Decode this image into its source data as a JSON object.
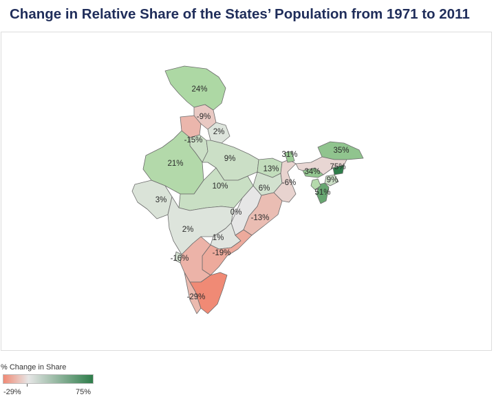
{
  "title": "Change in Relative Share of the States’ Population from 1971 to 2011",
  "legend": {
    "title": "% Change in Share",
    "min_label": "-29%",
    "max_label": "75%",
    "min_value": -29,
    "mid_value": 0,
    "max_value": 75,
    "color_min": "#f08a75",
    "color_mid": "#e6e6e6",
    "color_max": "#2e7d4a"
  },
  "chart_data": {
    "type": "choropleth",
    "regions": [
      {
        "name": "Jammu and Kashmir",
        "value": 24,
        "label": "24%"
      },
      {
        "name": "Himachal Pradesh",
        "value": -9,
        "label": "-9%"
      },
      {
        "name": "Punjab",
        "value": -15,
        "label": "-15%"
      },
      {
        "name": "Uttarakhand",
        "value": 2,
        "label": "2%"
      },
      {
        "name": "Haryana",
        "value": 9,
        "label": ""
      },
      {
        "name": "Rajasthan",
        "value": 21,
        "label": "21%"
      },
      {
        "name": "Uttar Pradesh",
        "value": 9,
        "label": "9%"
      },
      {
        "name": "Bihar",
        "value": 13,
        "label": "13%"
      },
      {
        "name": "Jharkhand",
        "value": 6,
        "label": "6%"
      },
      {
        "name": "West Bengal",
        "value": -6,
        "label": "-6%"
      },
      {
        "name": "Sikkim",
        "value": 31,
        "label": "31%"
      },
      {
        "name": "Arunachal Pradesh",
        "value": 35,
        "label": "35%"
      },
      {
        "name": "Assam",
        "value": -5,
        "label": ""
      },
      {
        "name": "Meghalaya",
        "value": 34,
        "label": "34%"
      },
      {
        "name": "Nagaland",
        "value": 75,
        "label": "75%"
      },
      {
        "name": "Manipur",
        "value": 9,
        "label": "9%"
      },
      {
        "name": "Mizoram",
        "value": 51,
        "label": "51%"
      },
      {
        "name": "Tripura",
        "value": 20,
        "label": ""
      },
      {
        "name": "Gujarat",
        "value": 3,
        "label": "3%"
      },
      {
        "name": "Madhya Pradesh",
        "value": 10,
        "label": "10%"
      },
      {
        "name": "Chhattisgarh",
        "value": 0,
        "label": "0%"
      },
      {
        "name": "Odisha",
        "value": -13,
        "label": "-13%"
      },
      {
        "name": "Maharashtra",
        "value": 2,
        "label": "2%"
      },
      {
        "name": "Telangana",
        "value": 1,
        "label": "1%"
      },
      {
        "name": "Andhra Pradesh",
        "value": -19,
        "label": "-19%"
      },
      {
        "name": "Karnataka",
        "value": -16,
        "label": "-16%"
      },
      {
        "name": "Goa",
        "value": 5,
        "label": ""
      },
      {
        "name": "Kerala",
        "value": -14,
        "label": ""
      },
      {
        "name": "Tamil Nadu",
        "value": -29,
        "label": "-29%"
      }
    ]
  }
}
